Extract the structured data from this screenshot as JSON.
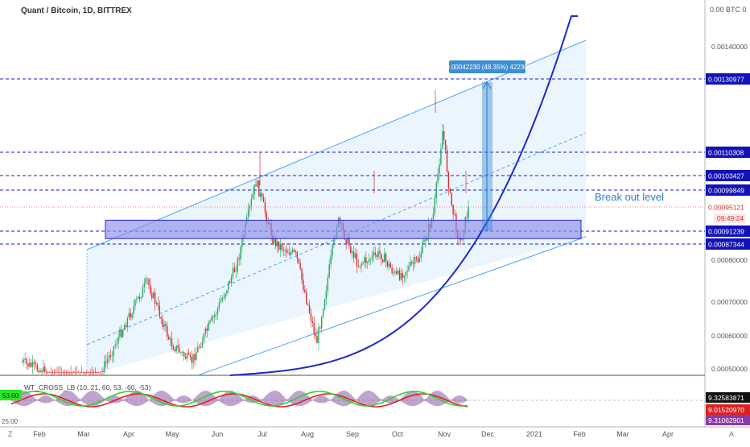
{
  "header": {
    "symbol_line": "Quant / Bitcoin, 1D, BITTREX",
    "axis_unit": "0.00 BTC 0"
  },
  "annotations": {
    "measure_label": "0.00042230 (48.35%) 42230",
    "breakout_label": "Break out level",
    "timer": "09:49:24"
  },
  "indicator": {
    "name_line": "WT_CROSS_LB (10, 21, 60, 53, -60, -53)",
    "left_badge": "53.00",
    "left_value": "25.00",
    "labels": [
      "9.32583871",
      "9.01520970",
      "9.31062901"
    ]
  },
  "colors": {
    "level_line": "#1a1ad6",
    "price_tag_bg": "#1212b8",
    "up_candle": "#26a65b",
    "down_candle": "#d92c2c",
    "channel_line": "#4aa3ff",
    "channel_fill": "#e8f3fd",
    "curve": "#1d29c8",
    "box_fill": "#8e8eea",
    "measure_bg": "#3e8ed6",
    "current_price_line": "#f08080"
  },
  "chart_data": {
    "type": "candlestick",
    "title": "Quant / Bitcoin, 1D, BITTREX",
    "x_axis_labels": [
      "Feb",
      "Mar",
      "Apr",
      "May",
      "Jun",
      "Jul",
      "Aug",
      "Sep",
      "Oct",
      "Nov",
      "Dec",
      "2021",
      "Feb",
      "Mar",
      "Apr"
    ],
    "y_axis_ticks": [
      0.0005,
      0.0006,
      0.0007,
      0.0008,
      0.0014
    ],
    "ylim": [
      0.00048,
      0.0016
    ],
    "horizontal_levels": [
      0.00130977,
      0.00110308,
      0.00103427,
      0.00099849,
      0.00091239,
      0.00087344
    ],
    "current_price": 0.00095121,
    "breakout_zone": [
      0.00089,
      0.00093
    ],
    "price_series": [
      {
        "date": "2020-01-20",
        "close": 0.00052
      },
      {
        "date": "2020-02-10",
        "close": 0.00048
      },
      {
        "date": "2020-03-10",
        "close": 0.00045
      },
      {
        "date": "2020-04-01",
        "close": 0.00065
      },
      {
        "date": "2020-04-15",
        "close": 0.00075
      },
      {
        "date": "2020-05-01",
        "close": 0.00058
      },
      {
        "date": "2020-05-15",
        "close": 0.00052
      },
      {
        "date": "2020-06-01",
        "close": 0.00067
      },
      {
        "date": "2020-06-15",
        "close": 0.00079
      },
      {
        "date": "2020-06-28",
        "close": 0.00102
      },
      {
        "date": "2020-07-10",
        "close": 0.00088
      },
      {
        "date": "2020-07-25",
        "close": 0.00082
      },
      {
        "date": "2020-08-08",
        "close": 0.00058
      },
      {
        "date": "2020-08-22",
        "close": 0.00093
      },
      {
        "date": "2020-09-05",
        "close": 0.00079
      },
      {
        "date": "2020-09-20",
        "close": 0.00083
      },
      {
        "date": "2020-10-01",
        "close": 0.00076
      },
      {
        "date": "2020-10-15",
        "close": 0.0008
      },
      {
        "date": "2020-10-25",
        "close": 0.00094
      },
      {
        "date": "2020-10-31",
        "close": 0.00117
      },
      {
        "date": "2020-11-05",
        "close": 0.00098
      },
      {
        "date": "2020-11-12",
        "close": 0.00087
      },
      {
        "date": "2020-11-18",
        "close": 0.00095
      }
    ]
  }
}
